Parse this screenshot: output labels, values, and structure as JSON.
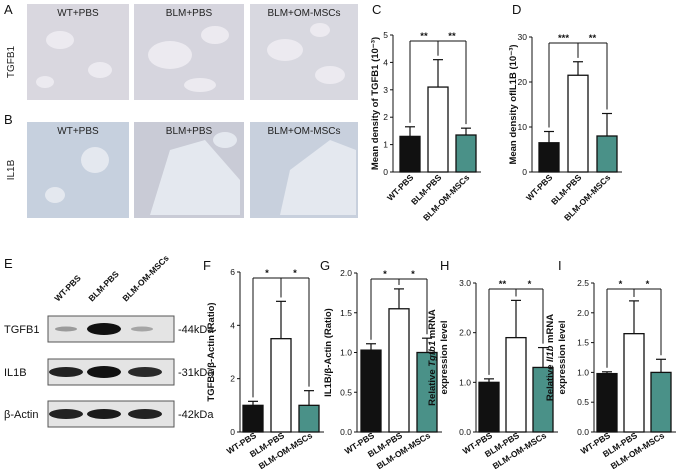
{
  "histology": [
    {
      "label": "A",
      "marker": "TGFB1",
      "groups": [
        "WT+PBS",
        "BLM+PBS",
        "BLM+OM-MSCs"
      ]
    },
    {
      "label": "B",
      "marker": "IL1B",
      "groups": [
        "WT+PBS",
        "BLM+PBS",
        "BLM+OM-MSCs"
      ]
    }
  ],
  "western_blot": {
    "label": "E",
    "lanes": [
      "WT-PBS",
      "BLM-PBS",
      "BLM-OM-MSCs"
    ],
    "rows": [
      {
        "name": "TGFB1",
        "size": "-44kDa"
      },
      {
        "name": "IL1B",
        "size": "-31kDa"
      },
      {
        "name": "β-Actin",
        "size": "-42kDa"
      }
    ]
  },
  "chart_data": [
    {
      "type": "bar",
      "panel": "C",
      "ylabel": "Mean density of TGFB1 (10⁻³)",
      "categories": [
        "WT-PBS",
        "BLM-PBS",
        "BLM-OM-MSCs"
      ],
      "values": [
        1.3,
        3.1,
        1.35
      ],
      "errors": [
        0.35,
        1.0,
        0.25
      ],
      "colors": [
        "#111111",
        "#ffffff",
        "#4a9188"
      ],
      "ylim": [
        0,
        5
      ],
      "yticks": [
        0,
        1,
        2,
        3,
        4,
        5
      ],
      "significance": [
        "**",
        "**"
      ]
    },
    {
      "type": "bar",
      "panel": "D",
      "ylabel": "Mean density ofIL1B (10⁻³)",
      "categories": [
        "WT-PBS",
        "BLM-PBS",
        "BLM-OM-MSCs"
      ],
      "values": [
        6.5,
        21.5,
        8
      ],
      "errors": [
        2.5,
        3,
        5
      ],
      "colors": [
        "#111111",
        "#ffffff",
        "#4a9188"
      ],
      "ylim": [
        0,
        30
      ],
      "yticks": [
        0,
        10,
        20,
        30
      ],
      "significance": [
        "***",
        "**"
      ]
    },
    {
      "type": "bar",
      "panel": "F",
      "ylabel": "TGFB1/β-Actin (Ratio)",
      "categories": [
        "WT-PBS",
        "BLM-PBS",
        "BLM-OM-MSCs"
      ],
      "values": [
        1.0,
        3.5,
        1.0
      ],
      "errors": [
        0.15,
        1.4,
        0.55
      ],
      "colors": [
        "#111111",
        "#ffffff",
        "#4a9188"
      ],
      "ylim": [
        0,
        6
      ],
      "yticks": [
        0,
        2,
        4,
        6
      ],
      "significance": [
        "*",
        "*"
      ]
    },
    {
      "type": "bar",
      "panel": "G",
      "ylabel": "IL1B/β-Actin (Ratio)",
      "categories": [
        "WT-PBS",
        "BLM-PBS",
        "BLM-OM-MSCs"
      ],
      "values": [
        1.03,
        1.55,
        1.0
      ],
      "errors": [
        0.08,
        0.25,
        0.18
      ],
      "colors": [
        "#111111",
        "#ffffff",
        "#4a9188"
      ],
      "ylim": [
        0,
        2
      ],
      "yticks": [
        {
          "value": 0,
          "label": "0.0"
        },
        0.5,
        {
          "value": 1,
          "label": "1.0"
        },
        1.5,
        {
          "value": 2,
          "label": "2.0"
        }
      ],
      "significance": [
        "*",
        "*"
      ]
    },
    {
      "type": "bar",
      "panel": "H",
      "ylabel": [
        "Relative ",
        "Tgfb1",
        " mRNA"
      ],
      "ylabel2": "expression level",
      "categories": [
        "WT-PBS",
        "BLM-PBS",
        "BLM-OM-MSCs"
      ],
      "values": [
        1.0,
        1.9,
        1.3
      ],
      "errors": [
        0.07,
        0.75,
        0.4
      ],
      "colors": [
        "#111111",
        "#ffffff",
        "#4a9188"
      ],
      "ylim": [
        0,
        3
      ],
      "yticks": [
        {
          "value": 0,
          "label": "0.0"
        },
        {
          "value": 1,
          "label": "1.0"
        },
        {
          "value": 2,
          "label": "2.0"
        },
        {
          "value": 3,
          "label": "3.0"
        }
      ],
      "significance": [
        "**",
        "*"
      ]
    },
    {
      "type": "bar",
      "panel": "I",
      "ylabel": [
        "Relative ",
        "Il1b",
        " mRNA"
      ],
      "ylabel2": "expression level",
      "categories": [
        "WT-PBS",
        "BLM-PBS",
        "BLM-OM-MSCs"
      ],
      "values": [
        0.98,
        1.65,
        1.0
      ],
      "errors": [
        0.03,
        0.55,
        0.22
      ],
      "colors": [
        "#111111",
        "#ffffff",
        "#4a9188"
      ],
      "ylim": [
        0,
        2.5
      ],
      "yticks": [
        {
          "value": 0,
          "label": "0.0"
        },
        0.5,
        {
          "value": 1,
          "label": "1.0"
        },
        1.5,
        {
          "value": 2,
          "label": "2.0"
        },
        2.5
      ],
      "significance": [
        "*",
        "*"
      ]
    }
  ]
}
